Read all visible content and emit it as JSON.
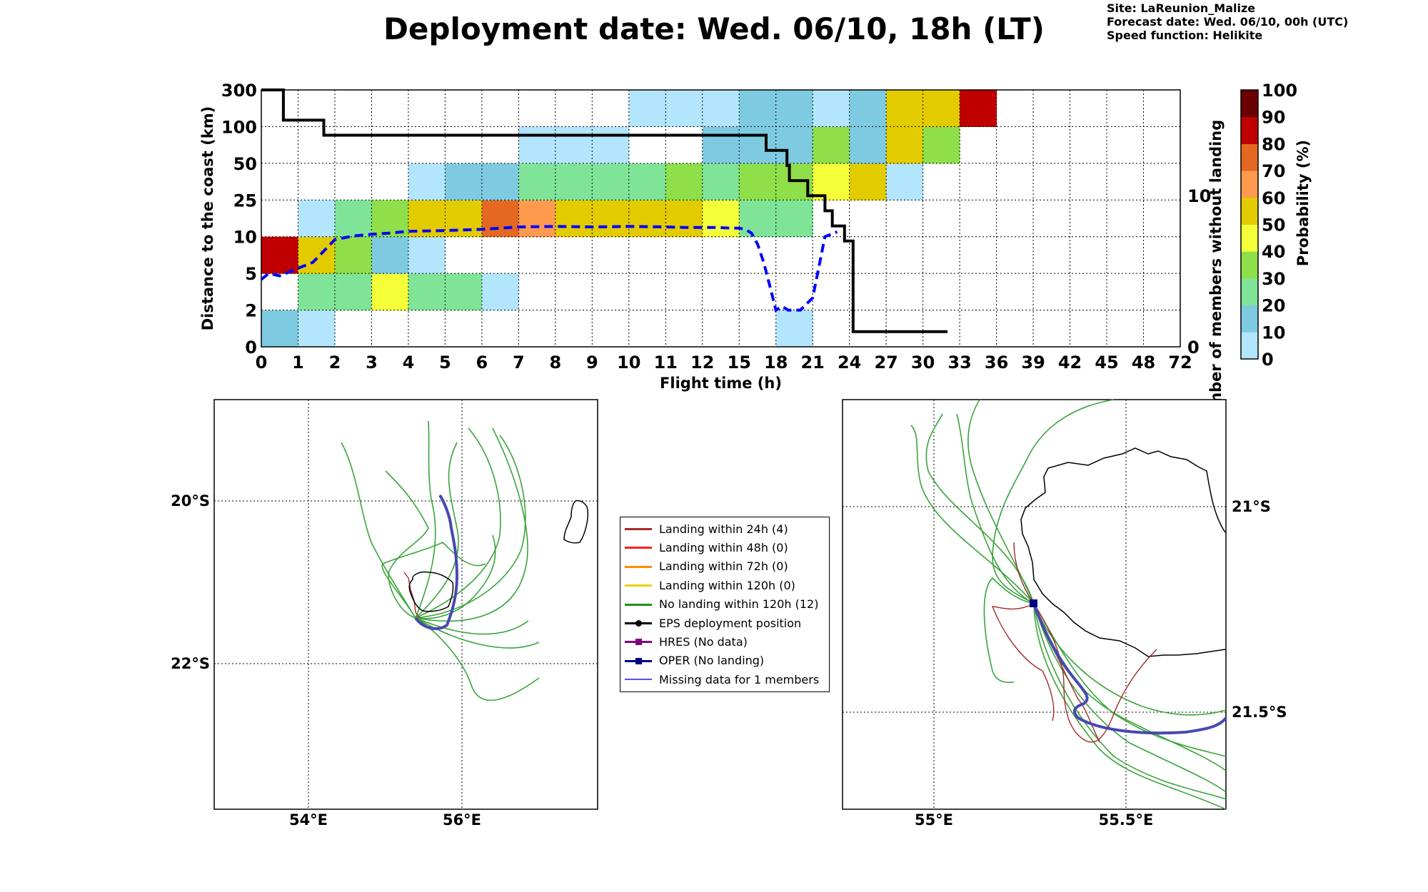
{
  "title": "Deployment date: Wed. 06/10, 18h (LT)",
  "meta": {
    "site": "Site: LaReunion_Malize",
    "forecast": "Forecast date: Wed. 06/10, 00h (UTC)",
    "speed": "Speed function: Helikite"
  },
  "colors": {
    "prob_bins": [
      "#b3e5fc",
      "#7ecbe1",
      "#80e498",
      "#8edf4a",
      "#f4ff3a",
      "#e2cc00",
      "#ff9a4f",
      "#e46820",
      "#c00000",
      "#6b0000"
    ],
    "median_line": "#0000ff",
    "members_line": "#000000",
    "opertrack": "#4848b0",
    "member_track": "#3aa43a"
  },
  "chart_data": [
    {
      "type": "heatmap",
      "title": "Deployment date: Wed. 06/10, 18h (LT)",
      "xlabel": "Flight time (h)",
      "ylabel": "Distance to the coast (km)",
      "y2label": "Number of members without landing",
      "x_ticks": [
        "0",
        "1",
        "2",
        "3",
        "4",
        "5",
        "6",
        "7",
        "8",
        "9",
        "10",
        "11",
        "12",
        "15",
        "18",
        "21",
        "24",
        "27",
        "30",
        "33",
        "36",
        "39",
        "42",
        "45",
        "48",
        "72"
      ],
      "y_ticks": [
        "0",
        "2",
        "5",
        "10",
        "25",
        "50",
        "100",
        "300"
      ],
      "y2_ticks": [
        "0",
        "10"
      ],
      "y2_range": [
        0,
        17
      ],
      "colorbar": {
        "label": "Probability (%)",
        "ticks": [
          "0",
          "10",
          "20",
          "30",
          "40",
          "50",
          "60",
          "70",
          "80",
          "90",
          "100"
        ]
      },
      "cells": [
        [
          0,
          0,
          1
        ],
        [
          0,
          2,
          8
        ],
        [
          1,
          0,
          0
        ],
        [
          1,
          1,
          2
        ],
        [
          1,
          2,
          5
        ],
        [
          1,
          3,
          0
        ],
        [
          2,
          1,
          2
        ],
        [
          2,
          2,
          3
        ],
        [
          2,
          3,
          2
        ],
        [
          3,
          1,
          4
        ],
        [
          3,
          2,
          1
        ],
        [
          3,
          3,
          3
        ],
        [
          4,
          1,
          2
        ],
        [
          4,
          2,
          0
        ],
        [
          4,
          3,
          5
        ],
        [
          4,
          4,
          0
        ],
        [
          5,
          1,
          2
        ],
        [
          5,
          3,
          5
        ],
        [
          5,
          4,
          1
        ],
        [
          6,
          1,
          0
        ],
        [
          6,
          3,
          7
        ],
        [
          6,
          4,
          1
        ],
        [
          7,
          3,
          6
        ],
        [
          7,
          4,
          2
        ],
        [
          7,
          5,
          0
        ],
        [
          8,
          3,
          5
        ],
        [
          8,
          4,
          2
        ],
        [
          8,
          5,
          0
        ],
        [
          9,
          3,
          5
        ],
        [
          9,
          4,
          2
        ],
        [
          9,
          5,
          0
        ],
        [
          10,
          3,
          5
        ],
        [
          10,
          4,
          2
        ],
        [
          10,
          6,
          0
        ],
        [
          11,
          3,
          5
        ],
        [
          11,
          4,
          3
        ],
        [
          11,
          6,
          0
        ],
        [
          12,
          3,
          4
        ],
        [
          12,
          4,
          2
        ],
        [
          12,
          5,
          1
        ],
        [
          12,
          6,
          0
        ],
        [
          13,
          3,
          2
        ],
        [
          13,
          4,
          3
        ],
        [
          13,
          5,
          1
        ],
        [
          13,
          6,
          1
        ],
        [
          14,
          0,
          0
        ],
        [
          14,
          3,
          2
        ],
        [
          14,
          4,
          3
        ],
        [
          14,
          5,
          1
        ],
        [
          14,
          6,
          1
        ],
        [
          15,
          4,
          4
        ],
        [
          15,
          5,
          3
        ],
        [
          15,
          6,
          0
        ],
        [
          16,
          4,
          5
        ],
        [
          16,
          5,
          1
        ],
        [
          16,
          6,
          1
        ],
        [
          17,
          4,
          0
        ],
        [
          17,
          5,
          5
        ],
        [
          17,
          6,
          5
        ],
        [
          18,
          5,
          3
        ],
        [
          18,
          6,
          5
        ],
        [
          19,
          6,
          8
        ]
      ],
      "series": [
        {
          "name": "",
          "style": "dashed blue",
          "x": [
            0,
            0.2,
            0.5,
            1,
            1.4,
            2,
            2.5,
            3,
            3.5,
            4,
            5,
            6,
            7,
            8,
            9,
            10,
            11,
            11.5,
            12,
            13,
            14,
            15,
            15.5,
            16,
            16.5,
            17,
            17.5,
            18,
            18.5,
            19,
            20,
            21,
            22,
            23
          ],
          "y_km": [
            4.5,
            5,
            4.8,
            5.7,
            6.5,
            9.6,
            10.3,
            11,
            11.5,
            12.2,
            12.5,
            13,
            14,
            14.2,
            14,
            14.2,
            14,
            13.8,
            13.8,
            13.8,
            13.6,
            13.5,
            13,
            11.5,
            9,
            6.5,
            4,
            2,
            2.3,
            2,
            2,
            3,
            10,
            12
          ]
        },
        {
          "name": "",
          "style": "solid black step",
          "x": [
            0,
            0.6,
            0.6,
            1.7,
            1.7,
            17.2,
            17.2,
            18.9,
            18.9,
            19.1,
            19.1,
            19.9,
            19.9,
            20.6,
            20.6,
            22,
            22,
            22.6,
            22.6,
            23.6,
            23.6,
            24.3,
            24.3,
            32
          ],
          "members": [
            17,
            17,
            15,
            15,
            14,
            14,
            13,
            13,
            12,
            12,
            11,
            11,
            11,
            11,
            10,
            10,
            9,
            9,
            8,
            8,
            7,
            7,
            1,
            1
          ]
        }
      ]
    }
  ],
  "maps": {
    "left": {
      "lat_ticks": [
        "20°S",
        "22°S"
      ],
      "lon_ticks": [
        "54°E",
        "56°E"
      ]
    },
    "right": {
      "lat_ticks": [
        "21°S",
        "21.5°S"
      ],
      "lon_ticks": [
        "55°E",
        "55.5°E"
      ]
    }
  },
  "legend": [
    {
      "label": "Landing within 24h (4)",
      "color": "#a52a2a",
      "marker": ""
    },
    {
      "label": "Landing within 48h (0)",
      "color": "#ff2020",
      "marker": ""
    },
    {
      "label": "Landing within 72h (0)",
      "color": "#ff8c00",
      "marker": ""
    },
    {
      "label": "Landing within 120h (0)",
      "color": "#f0d000",
      "marker": ""
    },
    {
      "label": "No landing within 120h (12)",
      "color": "#1f8f1f",
      "marker": ""
    },
    {
      "label": "EPS deployment position",
      "color": "#000000",
      "marker": "round"
    },
    {
      "label": "HRES (No data)",
      "color": "#800080",
      "marker": "square"
    },
    {
      "label": "OPER (No landing)",
      "color": "#000080",
      "marker": "square"
    },
    {
      "label": "Missing data for 1 members",
      "color": "#5050ff",
      "marker": ""
    }
  ]
}
